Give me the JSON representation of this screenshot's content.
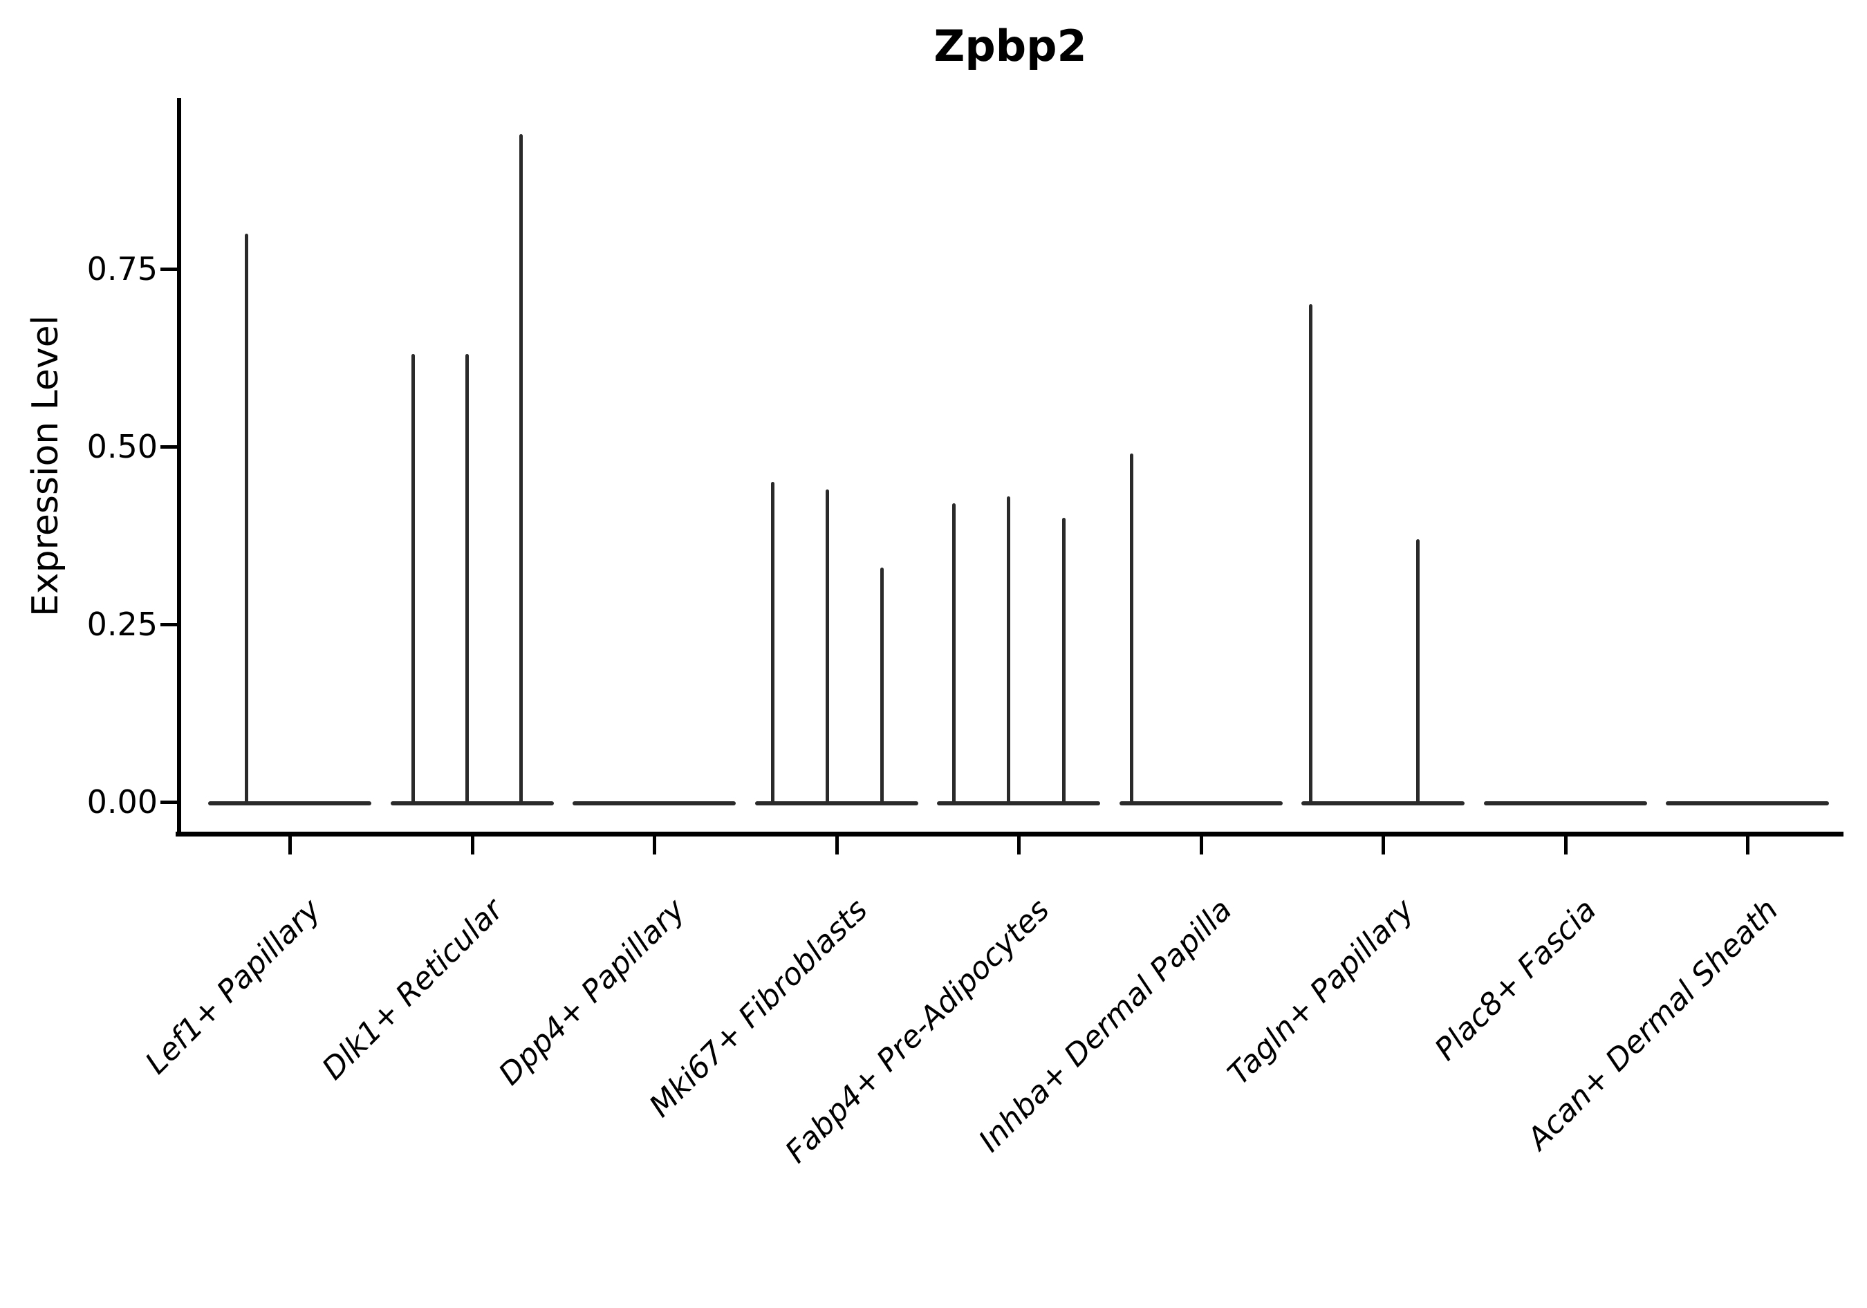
{
  "chart_data": {
    "type": "violin",
    "title": "Zpbp2",
    "ylabel": "Expression Level",
    "xlabel": "",
    "ylim": [
      0,
      0.99
    ],
    "grid": false,
    "legend": "none",
    "spines": [
      "left",
      "bottom"
    ],
    "x_tick_rotation": 45,
    "y_ticks": [
      {
        "value": 0.0,
        "label": "0.00"
      },
      {
        "value": 0.25,
        "label": "0.25"
      },
      {
        "value": 0.5,
        "label": "0.50"
      },
      {
        "value": 0.75,
        "label": "0.75"
      }
    ],
    "categories": [
      "Lef1+ Papillary",
      "Dlk1+ Reticular",
      "Dpp4+ Papillary",
      "Mki67+ Fibroblasts",
      "Fabp4+ Pre-Adipocytes",
      "Inhba+ Dermal Papilla",
      "Tagln+ Papillary",
      "Plac8+ Fascia",
      "Acan+ Dermal Sheath"
    ],
    "series": [
      {
        "category": "Lef1+ Papillary",
        "baseline_value": 0,
        "spikes": [
          {
            "x_offset": -63,
            "value": 0.8
          }
        ]
      },
      {
        "category": "Dlk1+ Reticular",
        "baseline_value": 0,
        "spikes": [
          {
            "x_offset": -86,
            "value": 0.63
          },
          {
            "x_offset": -8,
            "value": 0.63
          },
          {
            "x_offset": 70,
            "value": 0.94
          }
        ]
      },
      {
        "category": "Dpp4+ Papillary",
        "baseline_value": 0,
        "spikes": []
      },
      {
        "category": "Mki67+ Fibroblasts",
        "baseline_value": 0,
        "spikes": [
          {
            "x_offset": -93,
            "value": 0.45
          },
          {
            "x_offset": -14,
            "value": 0.44
          },
          {
            "x_offset": 65,
            "value": 0.33
          }
        ]
      },
      {
        "category": "Fabp4+ Pre-Adipocytes",
        "baseline_value": 0,
        "spikes": [
          {
            "x_offset": -94,
            "value": 0.42
          },
          {
            "x_offset": -15,
            "value": 0.43
          },
          {
            "x_offset": 65,
            "value": 0.4
          }
        ]
      },
      {
        "category": "Inhba+ Dermal Papilla",
        "baseline_value": 0,
        "spikes": [
          {
            "x_offset": -101,
            "value": 0.49
          }
        ]
      },
      {
        "category": "Tagln+ Papillary",
        "baseline_value": 0,
        "spikes": [
          {
            "x_offset": -105,
            "value": 0.7
          },
          {
            "x_offset": 50,
            "value": 0.37
          }
        ]
      },
      {
        "category": "Plac8+ Fascia",
        "baseline_value": 0,
        "spikes": []
      },
      {
        "category": "Acan+ Dermal Sheath",
        "baseline_value": 0,
        "spikes": []
      }
    ],
    "colors": {
      "ink": "#000000",
      "violin": "#2a2a2a",
      "background": "#ffffff"
    }
  }
}
